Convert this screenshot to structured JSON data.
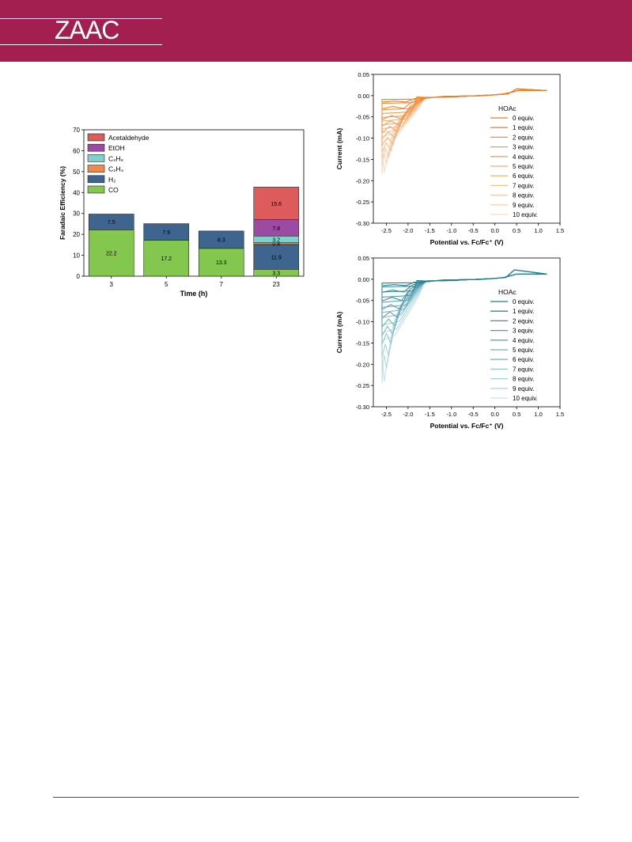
{
  "journal": {
    "logo": "ZAAC",
    "brand_color": "#a31f4f"
  },
  "chart_data": [
    {
      "type": "bar",
      "stacked": true,
      "categories": [
        "3",
        "5",
        "7",
        "23"
      ],
      "xlabel": "Time (h)",
      "ylabel": "Faradaic Efficiency (%)",
      "ylim": [
        0,
        70
      ],
      "yticks": [
        "0",
        "10",
        "20",
        "30",
        "40",
        "50",
        "60",
        "70"
      ],
      "legend_position": "top-left",
      "series": [
        {
          "name": "CO",
          "color": "#84c74e",
          "values": [
            22.2,
            17.2,
            13.3,
            3.3
          ],
          "labels": [
            "22.2",
            "17.2",
            "13.3",
            "3.3"
          ]
        },
        {
          "name": "H₂",
          "color": "#3d6590",
          "values": [
            7.5,
            7.9,
            8.3,
            11.9
          ],
          "labels": [
            "7.5",
            "7.9",
            "8.3",
            "11.9"
          ]
        },
        {
          "name": "C₂H₄",
          "color": "#f0894a",
          "values": [
            0,
            0,
            0,
            0.8
          ],
          "labels": [
            "",
            "",
            "",
            "0.8"
          ]
        },
        {
          "name": "C₂H₆",
          "color": "#7fd1cb",
          "values": [
            0,
            0,
            0,
            3.2
          ],
          "labels": [
            "",
            "",
            "",
            "3.2"
          ]
        },
        {
          "name": "EtOH",
          "color": "#9d4aa5",
          "values": [
            0,
            0,
            0,
            7.8
          ],
          "labels": [
            "",
            "",
            "",
            "7.8"
          ]
        },
        {
          "name": "Acetaldehyde",
          "color": "#de5b5b",
          "values": [
            0,
            0,
            0,
            15.6
          ],
          "labels": [
            "",
            "",
            "",
            "15.6"
          ]
        }
      ]
    },
    {
      "type": "line",
      "xlabel": "Potential vs. Fc/Fc⁺ (V)",
      "ylabel": "Current (mA)",
      "xlim": [
        -2.8,
        1.5
      ],
      "ylim": [
        -0.3,
        0.05
      ],
      "xticks": [
        "-2.5",
        "-2.0",
        "-1.5",
        "-1.0",
        "-0.5",
        "0.0",
        "0.5",
        "1.0",
        "1.5"
      ],
      "yticks": [
        "0.05",
        "0.00",
        "-0.05",
        "-0.10",
        "-0.15",
        "-0.20",
        "-0.25",
        "-0.30"
      ],
      "legend_title": "HOAc",
      "legend_position": "right",
      "color_dark": "#ee7d22",
      "color_light": "#fbdcc4",
      "series_names": [
        "0 equiv.",
        "1 equiv.",
        "2 equiv.",
        "3 equiv.",
        "4 equiv.",
        "5 equiv.",
        "6 equiv.",
        "7 equiv.",
        "8 equiv.",
        "9 equiv.",
        "10 equiv."
      ],
      "cathodic_peak_current": [
        -0.015,
        -0.03,
        -0.055,
        -0.07,
        -0.085,
        -0.1,
        -0.115,
        -0.13,
        -0.145,
        -0.16,
        -0.18
      ],
      "switch_potential": -2.6,
      "anodic_peak": {
        "x": 0.4,
        "y": 0.016
      }
    },
    {
      "type": "line",
      "xlabel": "Potential vs. Fc/Fc⁺ (V)",
      "ylabel": "Current (mA)",
      "xlim": [
        -2.8,
        1.5
      ],
      "ylim": [
        -0.3,
        0.05
      ],
      "xticks": [
        "-2.5",
        "-2.0",
        "-1.5",
        "-1.0",
        "-0.5",
        "0.0",
        "0.5",
        "1.0",
        "1.5"
      ],
      "yticks": [
        "0.05",
        "0.00",
        "-0.05",
        "-0.10",
        "-0.15",
        "-0.20",
        "-0.25",
        "-0.30"
      ],
      "legend_title": "HOAc",
      "legend_position": "right",
      "color_dark": "#1f7e92",
      "color_light": "#c5e4ea",
      "series_names": [
        "0 equiv.",
        "1 equiv.",
        "2 equiv.",
        "3 equiv.",
        "4 equiv.",
        "5 equiv.",
        "6 equiv.",
        "7 equiv.",
        "8 equiv.",
        "9 equiv.",
        "10 equiv."
      ],
      "cathodic_peak_current": [
        -0.015,
        -0.03,
        -0.05,
        -0.07,
        -0.09,
        -0.11,
        -0.13,
        -0.15,
        -0.18,
        -0.21,
        -0.24
      ],
      "switch_potential": -2.6,
      "anodic_peak": {
        "x": 0.35,
        "y": 0.022
      }
    }
  ]
}
